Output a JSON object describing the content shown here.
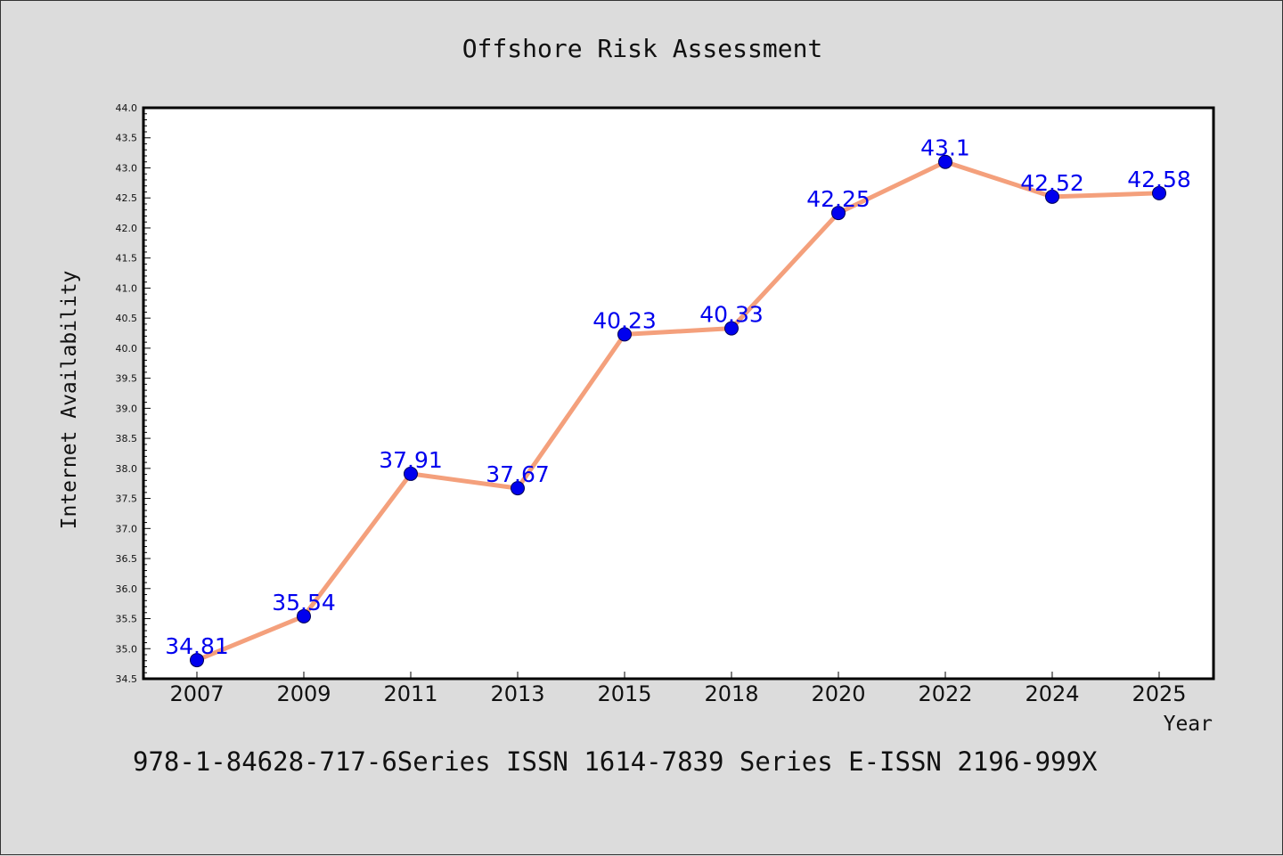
{
  "colors": {
    "background": "#dcdcdc",
    "plot_background": "#ffffff",
    "line": "#f4a07c",
    "marker": "#0000ee",
    "data_label": "#0000ee"
  },
  "footer_text": "978-1-84628-717-6Series ISSN 1614-7839 Series E-ISSN 2196-999X",
  "chart_data": {
    "type": "line",
    "title": "Offshore Risk Assessment",
    "xlabel": "Year",
    "ylabel": "Internet Availability",
    "categories": [
      "2007",
      "2009",
      "2011",
      "2013",
      "2015",
      "2018",
      "2020",
      "2022",
      "2024",
      "2025"
    ],
    "series": [
      {
        "values": [
          34.81,
          35.54,
          37.91,
          37.67,
          40.23,
          40.33,
          42.25,
          43.1,
          42.52,
          42.58
        ],
        "labels": [
          "34.81",
          "35.54",
          "37.91",
          "37.67",
          "40.23",
          "40.33",
          "42.25",
          "43.1",
          "42.52",
          "42.58"
        ]
      }
    ],
    "ylim": [
      34.5,
      44.0
    ],
    "yticks": [
      "34.5",
      "35.0",
      "35.5",
      "36.0",
      "36.5",
      "37.0",
      "37.5",
      "38.0",
      "38.5",
      "39.0",
      "39.5",
      "40.0",
      "40.5",
      "41.0",
      "41.5",
      "42.0",
      "42.5",
      "43.0",
      "43.5",
      "44.0"
    ],
    "grid": false,
    "legend": "none"
  }
}
